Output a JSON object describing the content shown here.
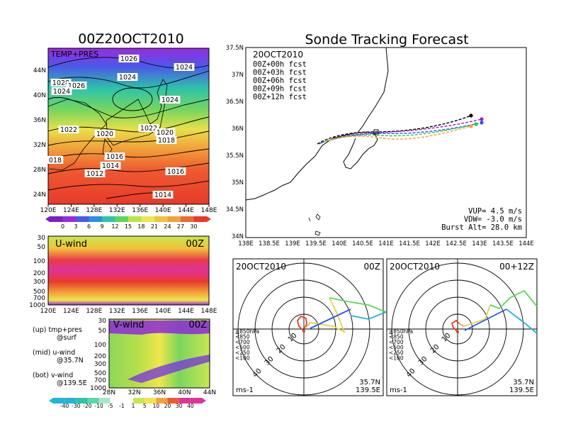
{
  "weather_title": "00Z20OCT2010",
  "sonde_title": "Sonde Tracking Forecast",
  "colors": {
    "purple": "#8c1ed2",
    "blue": "#2b57e6",
    "cyan": "#1fb6d8",
    "teal": "#2ec4a8",
    "green": "#5cd65c",
    "yellowgreen": "#b8e64a",
    "yellow": "#f0e64a",
    "orange": "#f2a23a",
    "red": "#e83a2a",
    "magenta": "#e0329a"
  },
  "map_panel": {
    "label": "TEMP+PRES",
    "x_ticks": [
      "120E",
      "124E",
      "128E",
      "132E",
      "136E",
      "140E",
      "144E",
      "148E"
    ],
    "y_ticks": [
      "24N",
      "28N",
      "32N",
      "36N",
      "40N",
      "44N"
    ],
    "isobars": [
      "1026",
      "1024",
      "1028",
      "1026",
      "1024",
      "1024",
      "1024",
      "1022",
      "1020",
      "1022",
      "1020",
      "1018",
      "1016",
      "1014",
      "1012",
      "1016",
      "1014",
      "018"
    ],
    "colorbar_labels": [
      "0",
      "3",
      "6",
      "9",
      "12",
      "15",
      "18",
      "21",
      "24",
      "27",
      "30"
    ]
  },
  "u_panel": {
    "label": "U-wind",
    "time": "00Z",
    "y_ticks": [
      "30",
      "50",
      "100",
      "200",
      "300",
      "500",
      "700",
      "1000"
    ],
    "x_ticks": [
      "120E",
      "124E",
      "128E",
      "132E",
      "136E",
      "140E",
      "144E",
      "148E"
    ]
  },
  "v_panel": {
    "label": "V-wind",
    "time": "00Z",
    "y_ticks": [
      "30",
      "50",
      "100",
      "200",
      "300",
      "500",
      "700",
      "1000"
    ],
    "x_ticks": [
      "28N",
      "32N",
      "36N",
      "40N",
      "44N"
    ],
    "colorbar_labels": [
      "-40",
      "-30",
      "-20",
      "-10",
      "-5",
      "-1",
      "1",
      "5",
      "10",
      "20",
      "30",
      "40"
    ]
  },
  "legend_notes": [
    {
      "line1": "(up) tmp+pres",
      "line2": "@surf"
    },
    {
      "line1": "(mid) u-wind",
      "line2": "@35.7N"
    },
    {
      "line1": "(bot) v-wind",
      "line2": "@139.5E"
    }
  ],
  "track_panel": {
    "date": "20OCT2010",
    "forecasts": [
      {
        "label": "00Z+00h fcst",
        "color": "#000000"
      },
      {
        "label": "00Z+03h fcst",
        "color": "#9a1ed2"
      },
      {
        "label": "00Z+06h fcst",
        "color": "#2b57e6"
      },
      {
        "label": "00Z+09h fcst",
        "color": "#2ec44a"
      },
      {
        "label": "00Z+12h fcst",
        "color": "#f2a23a"
      }
    ],
    "x_ticks": [
      "138E",
      "138.5E",
      "139E",
      "139.5E",
      "140E",
      "140.5E",
      "141E",
      "141.5E",
      "142E",
      "142.5E",
      "143E",
      "143.5E",
      "144E"
    ],
    "y_ticks": [
      "37.5N",
      "37N",
      "36.5N",
      "36N",
      "35.5N",
      "35N",
      "34.5N",
      "34N"
    ],
    "params": [
      "VUP= 4.5 m/s",
      "VDW= -3.0 m/s",
      "Burst Alt= 28.0 km"
    ]
  },
  "hodo_left": {
    "date": "20OCT2010",
    "time": "00Z",
    "unit": "ms-1",
    "ring_labels": [
      "10",
      "20",
      "30",
      "40"
    ],
    "location": [
      "35.7N",
      "139.5E"
    ],
    "levels": [
      {
        "label": "≧850hPa",
        "color": "#e83a2a"
      },
      {
        "label": "<850",
        "color": "#f2a23a"
      },
      {
        "label": "<700",
        "color": "#e8d24a"
      },
      {
        "label": "<500",
        "color": "#5cd65c"
      },
      {
        "label": "<250",
        "color": "#1fb6d8"
      },
      {
        "label": "<100",
        "color": "#2b57e6"
      }
    ]
  },
  "hodo_right": {
    "date": "20OCT2010",
    "time": "00+12Z",
    "unit": "ms-1",
    "ring_labels": [
      "10",
      "20",
      "30",
      "40"
    ],
    "location": [
      "35.7N",
      "139.5E"
    ],
    "levels": [
      {
        "label": "≧850hPa",
        "color": "#e83a2a"
      },
      {
        "label": "<850",
        "color": "#f2a23a"
      },
      {
        "label": "<700",
        "color": "#e8d24a"
      },
      {
        "label": "<500",
        "color": "#5cd65c"
      },
      {
        "label": "<250",
        "color": "#1fb6d8"
      },
      {
        "label": "<100",
        "color": "#2b57e6"
      }
    ]
  }
}
